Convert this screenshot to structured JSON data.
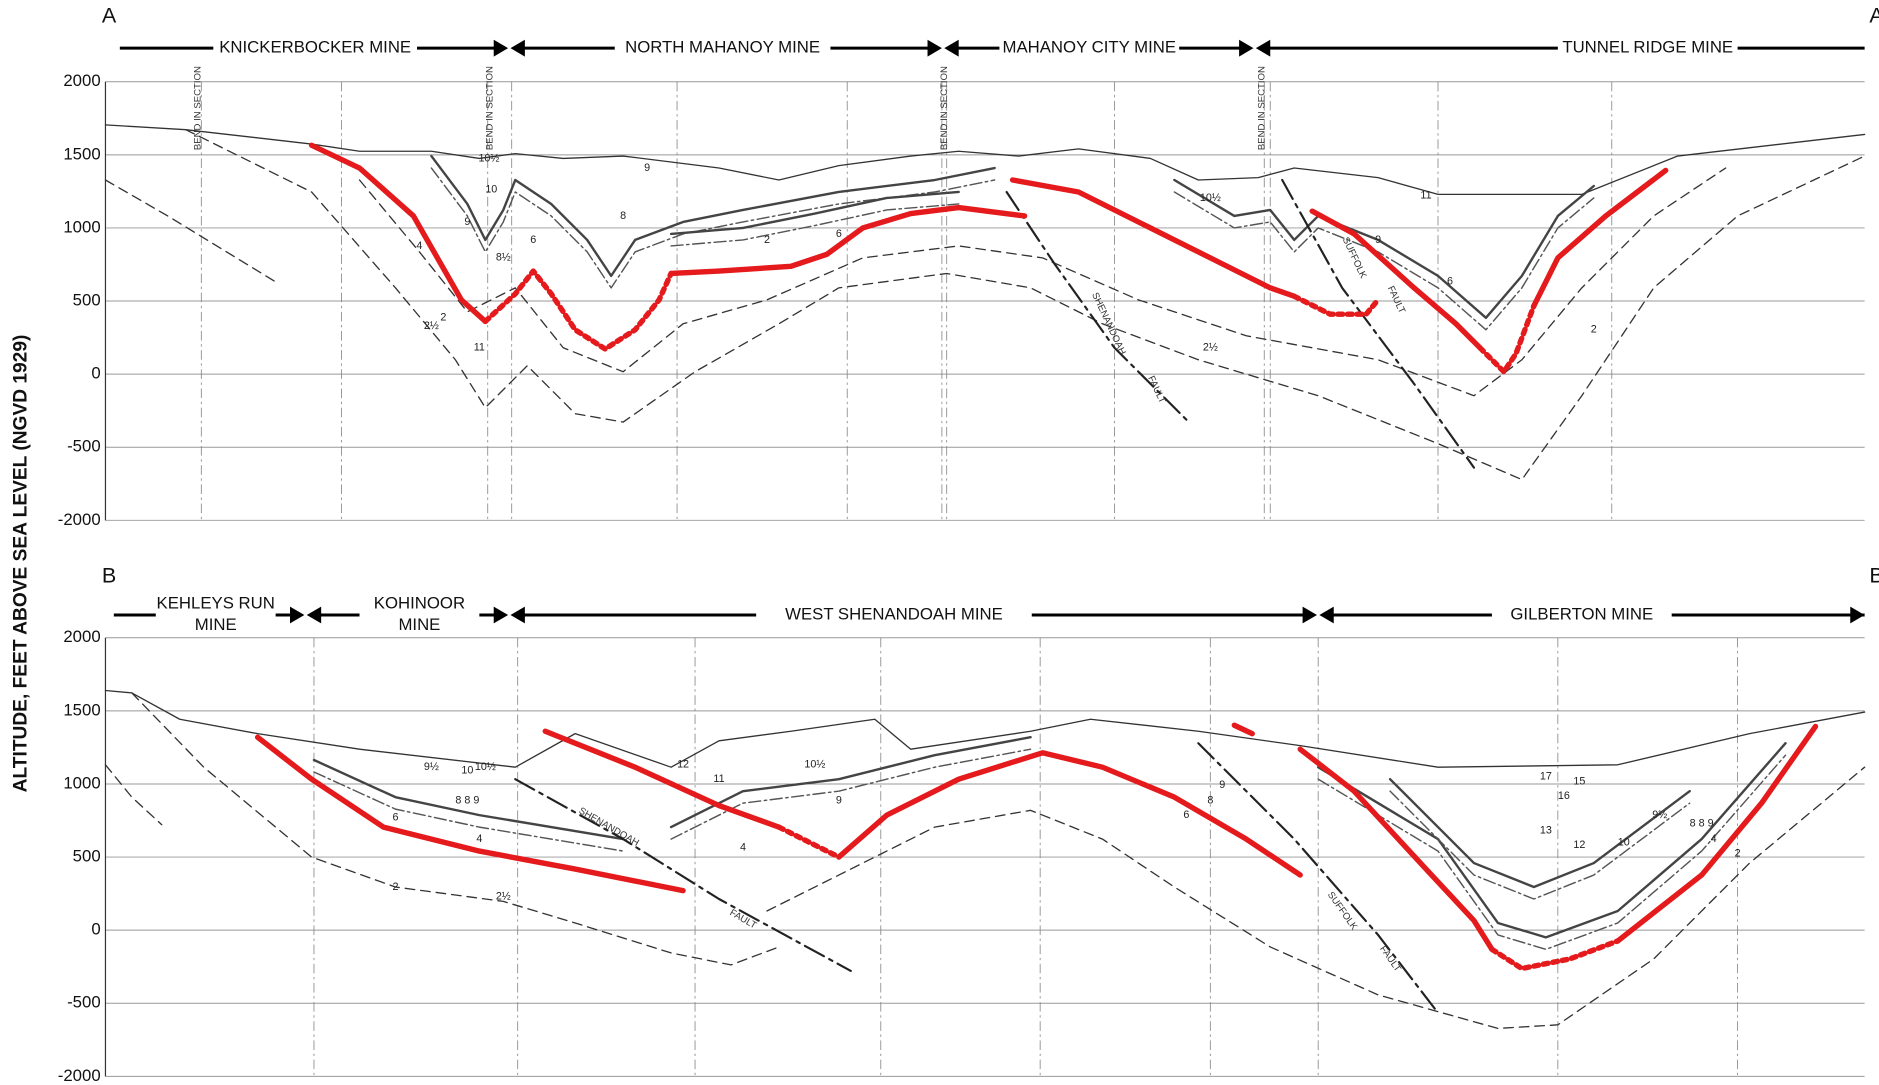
{
  "y_axis_label": "ALTITUDE, FEET ABOVE SEA LEVEL (NGVD 1929)",
  "sections": [
    {
      "start_label": "A",
      "end_label": "A'",
      "y_ticks": [
        "2000",
        "1500",
        "1000",
        "500",
        "0",
        "-500",
        "-2000"
      ],
      "mines": [
        [
          "KNICKERBOCKER MINE"
        ],
        [
          "NORTH MAHANOY MINE"
        ],
        [
          "MAHANOY CITY MINE"
        ],
        [
          "TUNNEL RIDGE MINE"
        ]
      ],
      "bend_labels": [
        "BEND IN SECTION",
        "BEND IN SECTION",
        "BEND IN SECTION",
        "BEND IN SECTION"
      ],
      "fault_labels": [
        "SHENANDOAH",
        "FAULT",
        "SUFFOLK",
        "FAULT"
      ],
      "bed_labels": [
        "10½",
        "10",
        "9",
        "8½",
        "6",
        "4",
        "2",
        "2½",
        "11",
        "9",
        "8",
        "6",
        "2",
        "2½",
        "10½",
        "11",
        "9",
        "6",
        "2"
      ]
    },
    {
      "start_label": "B",
      "end_label": "B'",
      "y_ticks": [
        "2000",
        "1500",
        "1000",
        "500",
        "0",
        "-500",
        "-2000"
      ],
      "mines": [
        [
          "KEHLEYS RUN",
          "MINE"
        ],
        [
          "KOHINOOR",
          "MINE"
        ],
        [
          "WEST SHENANDOAH MINE"
        ],
        [
          "GILBERTON MINE"
        ]
      ],
      "fault_labels": [
        "SHENANDOAH",
        "FAULT",
        "SUFFOLK",
        "FAULT"
      ],
      "bed_labels": [
        "9½",
        "10",
        "10½",
        "8 8 9",
        "6",
        "4",
        "2",
        "2½",
        "12",
        "11",
        "10½",
        "9",
        "4",
        "6",
        "8",
        "9",
        "17",
        "16",
        "15",
        "13",
        "12",
        "10",
        "9½",
        "8 8 9",
        "4",
        "2"
      ]
    }
  ]
}
